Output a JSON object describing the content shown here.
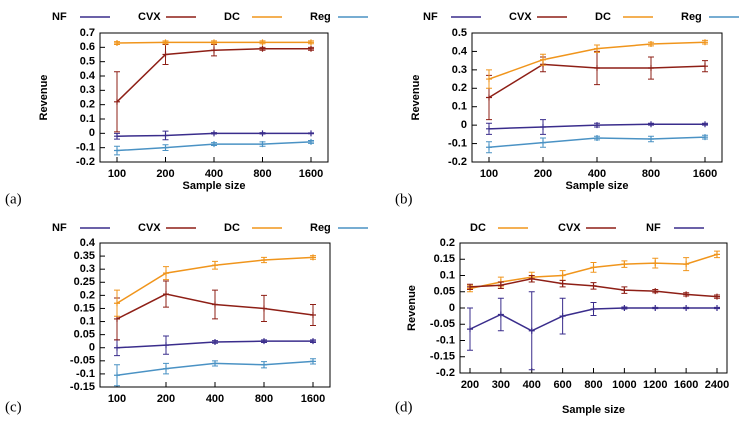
{
  "chart_data": [
    {
      "type": "line",
      "label": "(a)",
      "x_label": "Sample size",
      "y_label": "Revenue",
      "legend": "top",
      "categories": [
        "100",
        "200",
        "400",
        "800",
        "1600"
      ],
      "ylim": [
        -0.2,
        0.7
      ],
      "yticks": [
        -0.2,
        -0.1,
        0,
        0.1,
        0.2,
        0.3,
        0.4,
        0.5,
        0.6,
        0.7
      ],
      "series": [
        {
          "name": "NF",
          "color": "#3a2d8c",
          "values": [
            -0.02,
            -0.015,
            0,
            0,
            0
          ],
          "errors": [
            0.02,
            0.03,
            0.005,
            0.005,
            0.003
          ]
        },
        {
          "name": "CVX",
          "color": "#8e1f16",
          "values": [
            0.22,
            0.55,
            0.58,
            0.59,
            0.59
          ],
          "errors": [
            0.21,
            0.07,
            0.04,
            0.01,
            0.01
          ]
        },
        {
          "name": "DC",
          "color": "#f0951c",
          "values": [
            0.63,
            0.635,
            0.635,
            0.635,
            0.635
          ],
          "errors": [
            0.01,
            0.01,
            0.01,
            0.01,
            0.01
          ]
        },
        {
          "name": "Reg",
          "color": "#4a92c4",
          "values": [
            -0.12,
            -0.1,
            -0.075,
            -0.075,
            -0.06
          ],
          "errors": [
            0.03,
            0.02,
            0.01,
            0.015,
            0.01
          ]
        }
      ]
    },
    {
      "type": "line",
      "label": "(b)",
      "x_label": "Sample size",
      "y_label": "Revenue",
      "legend": "top",
      "categories": [
        "100",
        "200",
        "400",
        "800",
        "1600"
      ],
      "ylim": [
        -0.2,
        0.5
      ],
      "yticks": [
        -0.2,
        -0.1,
        0,
        0.1,
        0.2,
        0.3,
        0.4,
        0.5
      ],
      "series": [
        {
          "name": "NF",
          "color": "#3a2d8c",
          "values": [
            -0.02,
            -0.01,
            0,
            0.005,
            0.005
          ],
          "errors": [
            0.03,
            0.04,
            0.01,
            0.005,
            0.005
          ]
        },
        {
          "name": "CVX",
          "color": "#8e1f16",
          "values": [
            0.15,
            0.33,
            0.31,
            0.31,
            0.32
          ],
          "errors": [
            0.12,
            0.04,
            0.09,
            0.06,
            0.03
          ]
        },
        {
          "name": "DC",
          "color": "#f0951c",
          "values": [
            0.25,
            0.355,
            0.415,
            0.44,
            0.45
          ],
          "errors": [
            0.05,
            0.03,
            0.02,
            0.01,
            0.01
          ]
        },
        {
          "name": "Reg",
          "color": "#4a92c4",
          "values": [
            -0.12,
            -0.095,
            -0.07,
            -0.075,
            -0.065
          ],
          "errors": [
            0.03,
            0.025,
            0.01,
            0.015,
            0.01
          ]
        }
      ]
    },
    {
      "type": "line",
      "label": "(c)",
      "legend": "top",
      "categories": [
        "100",
        "200",
        "400",
        "800",
        "1600"
      ],
      "ylim": [
        -0.15,
        0.4
      ],
      "yticks": [
        -0.15,
        -0.1,
        -0.05,
        0,
        0.05,
        0.1,
        0.15,
        0.2,
        0.25,
        0.3,
        0.35,
        0.4
      ],
      "series": [
        {
          "name": "NF",
          "color": "#3a2d8c",
          "values": [
            0,
            0.01,
            0.022,
            0.025,
            0.025
          ],
          "errors": [
            0.03,
            0.035,
            0.005,
            0.005,
            0.005
          ]
        },
        {
          "name": "CVX",
          "color": "#8e1f16",
          "values": [
            0.11,
            0.205,
            0.165,
            0.15,
            0.125
          ],
          "errors": [
            0.08,
            0.05,
            0.055,
            0.05,
            0.04
          ]
        },
        {
          "name": "DC",
          "color": "#f0951c",
          "values": [
            0.17,
            0.285,
            0.315,
            0.335,
            0.345
          ],
          "errors": [
            0.05,
            0.025,
            0.015,
            0.01,
            0.007
          ]
        },
        {
          "name": "Reg",
          "color": "#4a92c4",
          "values": [
            -0.105,
            -0.08,
            -0.06,
            -0.065,
            -0.052
          ],
          "errors": [
            0.04,
            0.02,
            0.01,
            0.012,
            0.01
          ]
        }
      ]
    },
    {
      "type": "line",
      "label": "(d)",
      "x_label": "Sample size",
      "y_label": "Revenue",
      "legend": "top",
      "categories": [
        "200",
        "300",
        "400",
        "600",
        "800",
        "1000",
        "1200",
        "1600",
        "2400"
      ],
      "ylim": [
        -0.2,
        0.2
      ],
      "yticks": [
        -0.2,
        -0.15,
        -0.1,
        -0.05,
        0,
        0.05,
        0.1,
        0.15,
        0.2
      ],
      "series": [
        {
          "name": "DC",
          "color": "#f0951c",
          "values": [
            0.06,
            0.08,
            0.095,
            0.1,
            0.125,
            0.135,
            0.138,
            0.135,
            0.165
          ],
          "errors": [
            0.01,
            0.015,
            0.015,
            0.015,
            0.015,
            0.01,
            0.015,
            0.02,
            0.01
          ]
        },
        {
          "name": "CVX",
          "color": "#8e1f16",
          "values": [
            0.065,
            0.07,
            0.09,
            0.075,
            0.068,
            0.055,
            0.052,
            0.042,
            0.035
          ],
          "errors": [
            0.008,
            0.01,
            0.01,
            0.01,
            0.01,
            0.01,
            0.005,
            0.005,
            0.005
          ]
        },
        {
          "name": "NF",
          "color": "#3a2d8c",
          "values": [
            -0.065,
            -0.02,
            -0.07,
            -0.025,
            -0.003,
            0,
            0,
            0,
            0
          ],
          "errors": [
            0.065,
            0.05,
            0.12,
            0.055,
            0.02,
            0.003,
            0.002,
            0.002,
            0.002
          ]
        }
      ]
    }
  ]
}
